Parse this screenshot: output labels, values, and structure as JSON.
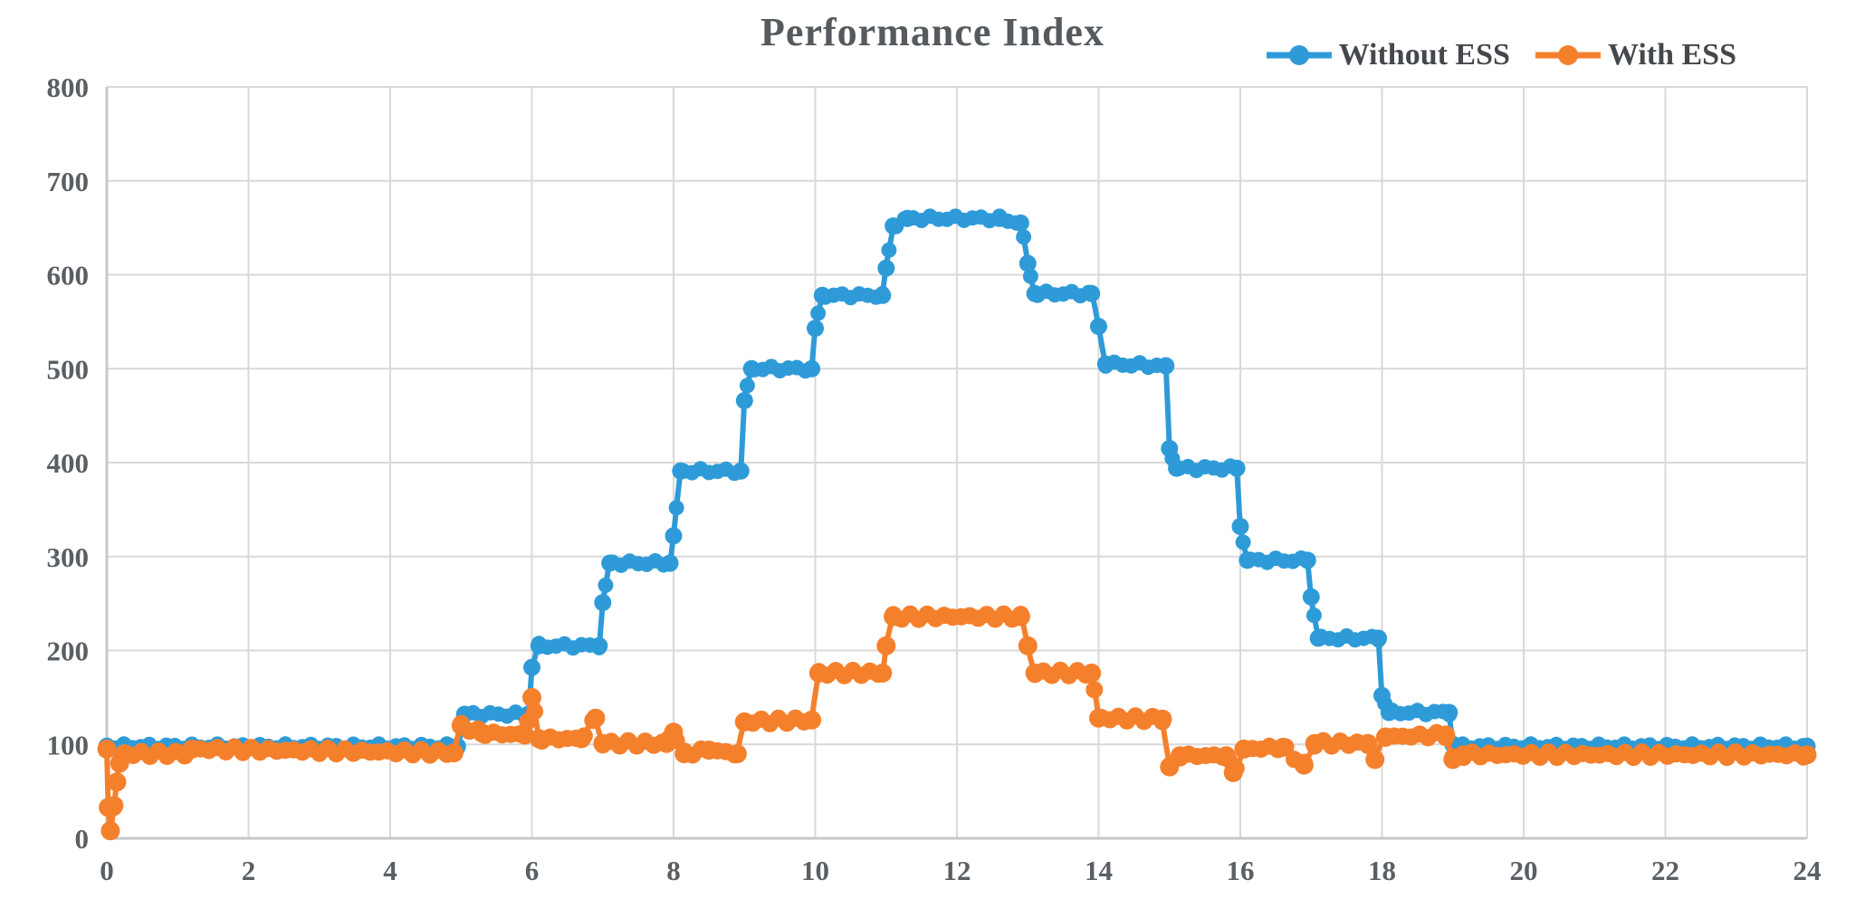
{
  "chart_data": {
    "type": "line",
    "title": "Performance Index",
    "xlabel": "",
    "ylabel": "",
    "xlim": [
      0,
      24
    ],
    "ylim": [
      0,
      800
    ],
    "x_ticks": [
      0,
      2,
      4,
      6,
      8,
      10,
      12,
      14,
      16,
      18,
      20,
      22,
      24
    ],
    "y_ticks": [
      0,
      100,
      200,
      300,
      400,
      500,
      600,
      700,
      800
    ],
    "grid": true,
    "legend_position": "top-right",
    "grid_color": "#d9d9d9",
    "axis_color": "#c6c9cc",
    "series": [
      {
        "name": "Without ESS",
        "color": "#2e9bd8",
        "points": [
          [
            0,
            98
          ],
          [
            4.95,
            98
          ],
          [
            5.05,
            132
          ],
          [
            5.95,
            132
          ],
          [
            6.0,
            182
          ],
          [
            6.1,
            205
          ],
          [
            6.95,
            205
          ],
          [
            7.0,
            251
          ],
          [
            7.1,
            293
          ],
          [
            7.95,
            293
          ],
          [
            8.0,
            322
          ],
          [
            8.1,
            391
          ],
          [
            8.95,
            391
          ],
          [
            9.0,
            466
          ],
          [
            9.1,
            500
          ],
          [
            9.95,
            500
          ],
          [
            10.0,
            543
          ],
          [
            10.1,
            578
          ],
          [
            10.95,
            578
          ],
          [
            11.0,
            607
          ],
          [
            11.1,
            652
          ],
          [
            11.3,
            660
          ],
          [
            12.6,
            660
          ],
          [
            12.9,
            655
          ],
          [
            13.0,
            612
          ],
          [
            13.1,
            580
          ],
          [
            13.9,
            580
          ],
          [
            14.0,
            545
          ],
          [
            14.1,
            505
          ],
          [
            14.95,
            503
          ],
          [
            15.0,
            415
          ],
          [
            15.1,
            394
          ],
          [
            15.95,
            394
          ],
          [
            16.0,
            332
          ],
          [
            16.1,
            296
          ],
          [
            16.95,
            296
          ],
          [
            17.0,
            257
          ],
          [
            17.1,
            213
          ],
          [
            17.95,
            213
          ],
          [
            18.0,
            152
          ],
          [
            18.1,
            134
          ],
          [
            18.95,
            134
          ],
          [
            19.0,
            100
          ],
          [
            19.1,
            98
          ],
          [
            24,
            98
          ]
        ]
      },
      {
        "name": "With ESS",
        "color": "#f5802c",
        "points": [
          [
            0,
            95
          ],
          [
            0.02,
            33
          ],
          [
            0.05,
            8
          ],
          [
            0.1,
            35
          ],
          [
            0.14,
            60
          ],
          [
            0.18,
            80
          ],
          [
            0.25,
            90
          ],
          [
            1.1,
            90
          ],
          [
            1.2,
            95
          ],
          [
            4.9,
            91
          ],
          [
            5.0,
            120
          ],
          [
            5.3,
            112
          ],
          [
            5.9,
            110
          ],
          [
            6.0,
            150
          ],
          [
            6.1,
            106
          ],
          [
            6.7,
            106
          ],
          [
            6.9,
            128
          ],
          [
            7.0,
            101
          ],
          [
            7.9,
            101
          ],
          [
            8.0,
            113
          ],
          [
            8.15,
            90
          ],
          [
            8.5,
            94
          ],
          [
            8.9,
            90
          ],
          [
            9.0,
            124
          ],
          [
            9.95,
            126
          ],
          [
            10.05,
            176
          ],
          [
            10.95,
            176
          ],
          [
            11.0,
            205
          ],
          [
            11.1,
            236
          ],
          [
            12.9,
            236
          ],
          [
            13.0,
            205
          ],
          [
            13.1,
            176
          ],
          [
            13.9,
            176
          ],
          [
            14.0,
            128
          ],
          [
            14.9,
            127
          ],
          [
            15.0,
            76
          ],
          [
            15.15,
            88
          ],
          [
            15.8,
            88
          ],
          [
            15.9,
            70
          ],
          [
            16.05,
            95
          ],
          [
            16.6,
            97
          ],
          [
            16.9,
            78
          ],
          [
            17.05,
            101
          ],
          [
            17.8,
            101
          ],
          [
            17.9,
            84
          ],
          [
            18.05,
            108
          ],
          [
            18.9,
            110
          ],
          [
            19.0,
            84
          ],
          [
            19.15,
            89
          ],
          [
            24,
            89
          ]
        ]
      }
    ]
  }
}
